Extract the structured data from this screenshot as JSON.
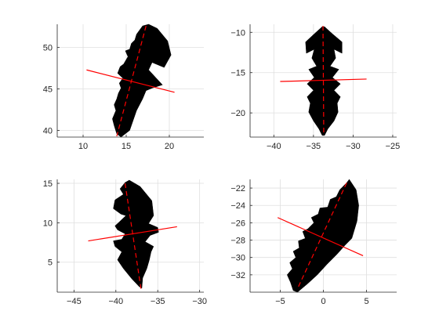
{
  "chart_data": [
    {
      "type": "scatter",
      "panel": "top-left",
      "grid": true,
      "xlim": [
        7,
        24
      ],
      "ylim": [
        39.2,
        52.8
      ],
      "xticks": [
        10,
        15,
        20
      ],
      "yticks": [
        40,
        45,
        50
      ],
      "shape": {
        "fill": "#000000",
        "right_edge": [
          [
            17.6,
            52.8
          ],
          [
            18.6,
            52.3
          ],
          [
            19.8,
            50.8
          ],
          [
            20.2,
            49.1
          ],
          [
            19.4,
            47.6
          ],
          [
            18.0,
            48.2
          ],
          [
            17.6,
            47.3
          ],
          [
            18.4,
            46.4
          ],
          [
            19.2,
            45.5
          ],
          [
            18.0,
            45.1
          ],
          [
            17.3,
            44.8
          ],
          [
            16.9,
            43.8
          ],
          [
            16.2,
            42.4
          ],
          [
            15.8,
            41.2
          ],
          [
            15.4,
            40.0
          ],
          [
            14.4,
            39.2
          ]
        ],
        "left_edge": [
          [
            16.9,
            52.6
          ],
          [
            16.2,
            51.6
          ],
          [
            16.0,
            50.9
          ],
          [
            15.6,
            50.5
          ],
          [
            15.4,
            49.8
          ],
          [
            14.9,
            49.6
          ],
          [
            15.2,
            48.9
          ],
          [
            14.7,
            48.0
          ],
          [
            14.3,
            47.7
          ],
          [
            14.0,
            46.9
          ],
          [
            14.6,
            46.3
          ],
          [
            14.2,
            45.7
          ],
          [
            14.4,
            45.1
          ],
          [
            14.1,
            44.5
          ],
          [
            13.9,
            43.8
          ],
          [
            13.6,
            43.1
          ],
          [
            13.8,
            42.4
          ],
          [
            13.4,
            41.4
          ],
          [
            13.6,
            40.6
          ],
          [
            13.9,
            39.6
          ]
        ]
      },
      "major_axis": {
        "color": "#ff0000",
        "style": "dashed",
        "points": [
          [
            17.3,
            52.6
          ],
          [
            13.9,
            39.3
          ]
        ]
      },
      "minor_axis": {
        "color": "#ff0000",
        "style": "solid",
        "points": [
          [
            10.4,
            47.3
          ],
          [
            20.6,
            44.6
          ]
        ]
      }
    },
    {
      "type": "scatter",
      "panel": "top-right",
      "grid": true,
      "xlim": [
        -43,
        -24.5
      ],
      "ylim": [
        -23,
        -9
      ],
      "xticks": [
        -40,
        -35,
        -30,
        -25
      ],
      "yticks": [
        -20,
        -15,
        -10
      ],
      "shape": {
        "fill": "#000000",
        "right_edge": [
          [
            -33.6,
            -9.3
          ],
          [
            -32.6,
            -10.2
          ],
          [
            -31.4,
            -11.2
          ],
          [
            -31.4,
            -12.6
          ],
          [
            -32.4,
            -12.1
          ],
          [
            -32.2,
            -13.2
          ],
          [
            -32.9,
            -14.2
          ],
          [
            -31.8,
            -14.6
          ],
          [
            -32.6,
            -15.6
          ],
          [
            -31.6,
            -16.4
          ],
          [
            -32.4,
            -17.2
          ],
          [
            -31.6,
            -18.0
          ],
          [
            -32.0,
            -18.8
          ],
          [
            -31.9,
            -19.9
          ],
          [
            -32.4,
            -21.0
          ],
          [
            -33.2,
            -22.0
          ],
          [
            -33.6,
            -22.8
          ]
        ],
        "left_edge": [
          [
            -33.9,
            -9.3
          ],
          [
            -34.9,
            -10.2
          ],
          [
            -36.0,
            -11.2
          ],
          [
            -35.9,
            -12.6
          ],
          [
            -34.9,
            -12.1
          ],
          [
            -35.2,
            -13.2
          ],
          [
            -34.6,
            -14.2
          ],
          [
            -35.6,
            -14.6
          ],
          [
            -34.9,
            -15.6
          ],
          [
            -35.8,
            -16.4
          ],
          [
            -35.0,
            -17.2
          ],
          [
            -35.8,
            -18.0
          ],
          [
            -35.4,
            -18.8
          ],
          [
            -35.6,
            -19.9
          ],
          [
            -35.0,
            -21.0
          ],
          [
            -34.3,
            -22.0
          ],
          [
            -33.9,
            -22.8
          ]
        ]
      },
      "major_axis": {
        "color": "#ff0000",
        "style": "dashed",
        "points": [
          [
            -33.8,
            -9.2
          ],
          [
            -33.7,
            -22.8
          ]
        ]
      },
      "minor_axis": {
        "color": "#ff0000",
        "style": "solid",
        "points": [
          [
            -39.2,
            -16.1
          ],
          [
            -28.3,
            -15.8
          ]
        ]
      }
    },
    {
      "type": "scatter",
      "panel": "bottom-left",
      "grid": true,
      "xlim": [
        -47,
        -29.5
      ],
      "ylim": [
        1.2,
        15.5
      ],
      "xticks": [
        -45,
        -40,
        -35,
        -30
      ],
      "yticks": [
        5,
        10,
        15
      ],
      "shape": {
        "fill": "#000000",
        "right_edge": [
          [
            -38.4,
            15.4
          ],
          [
            -37.1,
            14.6
          ],
          [
            -35.7,
            12.8
          ],
          [
            -35.5,
            10.9
          ],
          [
            -36.1,
            9.9
          ],
          [
            -35.0,
            9.4
          ],
          [
            -34.9,
            8.8
          ],
          [
            -35.9,
            8.4
          ],
          [
            -36.5,
            7.6
          ],
          [
            -35.5,
            7.0
          ],
          [
            -35.8,
            6.3
          ],
          [
            -36.0,
            5.3
          ],
          [
            -36.3,
            4.2
          ],
          [
            -36.8,
            3.0
          ],
          [
            -36.9,
            1.7
          ]
        ],
        "left_edge": [
          [
            -38.9,
            15.1
          ],
          [
            -39.5,
            14.3
          ],
          [
            -39.1,
            13.6
          ],
          [
            -40.1,
            12.9
          ],
          [
            -40.3,
            11.8
          ],
          [
            -39.4,
            11.1
          ],
          [
            -38.8,
            10.9
          ],
          [
            -39.6,
            10.1
          ],
          [
            -40.1,
            9.6
          ],
          [
            -39.8,
            9.1
          ],
          [
            -38.9,
            8.6
          ],
          [
            -39.3,
            7.9
          ],
          [
            -40.3,
            7.7
          ],
          [
            -40.1,
            7.0
          ],
          [
            -39.3,
            6.3
          ],
          [
            -39.8,
            5.3
          ],
          [
            -39.1,
            4.2
          ],
          [
            -38.1,
            2.9
          ],
          [
            -37.2,
            1.9
          ]
        ]
      },
      "major_axis": {
        "color": "#ff0000",
        "style": "dashed",
        "points": [
          [
            -38.9,
            15.0
          ],
          [
            -37.0,
            1.6
          ]
        ]
      },
      "minor_axis": {
        "color": "#ff0000",
        "style": "solid",
        "points": [
          [
            -43.3,
            7.7
          ],
          [
            -32.7,
            9.5
          ]
        ]
      }
    },
    {
      "type": "scatter",
      "panel": "bottom-right",
      "grid": true,
      "xlim": [
        -8.5,
        8.5
      ],
      "ylim": [
        -34,
        -21
      ],
      "xticks": [
        -5,
        0,
        5
      ],
      "yticks": [
        -32,
        -30,
        -28,
        -26,
        -24,
        -22
      ],
      "shape": {
        "fill": "#000000",
        "right_edge": [
          [
            3.0,
            -21.0
          ],
          [
            3.8,
            -22.2
          ],
          [
            4.1,
            -24.0
          ],
          [
            3.9,
            -25.8
          ],
          [
            3.3,
            -27.8
          ],
          [
            2.5,
            -28.6
          ],
          [
            1.6,
            -29.6
          ],
          [
            0.4,
            -30.8
          ],
          [
            -0.7,
            -32.0
          ],
          [
            -1.8,
            -33.0
          ],
          [
            -3.0,
            -34.0
          ]
        ],
        "left_edge": [
          [
            2.7,
            -21.4
          ],
          [
            1.9,
            -22.2
          ],
          [
            1.5,
            -23.0
          ],
          [
            0.8,
            -23.3
          ],
          [
            0.5,
            -24.2
          ],
          [
            -0.4,
            -24.3
          ],
          [
            -0.6,
            -25.0
          ],
          [
            -1.4,
            -25.4
          ],
          [
            -1.1,
            -26.0
          ],
          [
            -1.8,
            -26.7
          ],
          [
            -2.4,
            -27.0
          ],
          [
            -2.1,
            -27.8
          ],
          [
            -2.9,
            -28.1
          ],
          [
            -2.8,
            -28.9
          ],
          [
            -3.5,
            -29.3
          ],
          [
            -3.2,
            -30.0
          ],
          [
            -3.9,
            -30.6
          ],
          [
            -3.6,
            -31.3
          ],
          [
            -4.2,
            -32.0
          ],
          [
            -3.8,
            -32.9
          ],
          [
            -3.5,
            -33.8
          ]
        ]
      },
      "major_axis": {
        "color": "#ff0000",
        "style": "dashed",
        "points": [
          [
            2.7,
            -21.4
          ],
          [
            -3.0,
            -33.6
          ]
        ]
      },
      "minor_axis": {
        "color": "#ff0000",
        "style": "solid",
        "points": [
          [
            -5.3,
            -25.4
          ],
          [
            4.6,
            -29.8
          ]
        ]
      }
    }
  ]
}
